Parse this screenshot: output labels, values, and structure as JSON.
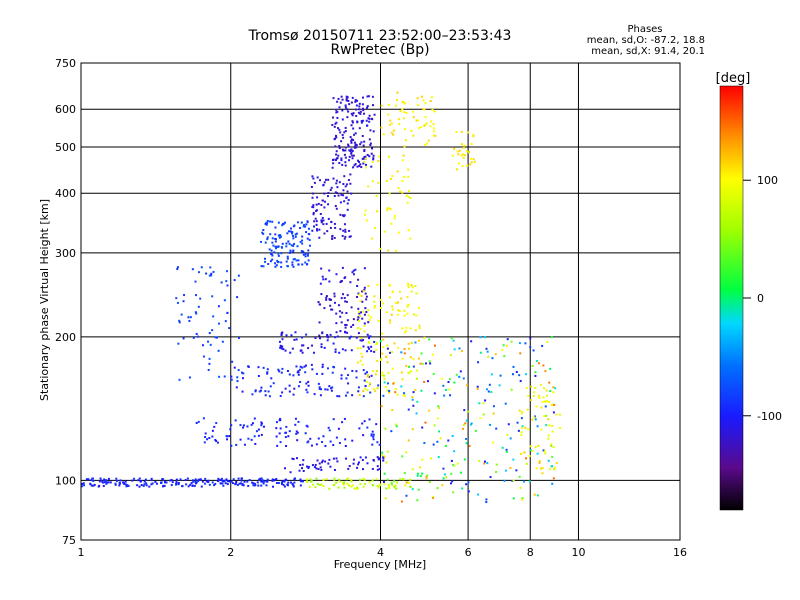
{
  "chart_data": {
    "type": "scatter",
    "title": "Tromsø 20150711 23:52:00–23:53:43",
    "subtitle": "RwPretec (Bp)",
    "xlabel": "Frequency [MHz]",
    "ylabel": "Stationary phase Virtual Height [km]",
    "x_scale": "log",
    "y_scale": "log",
    "xlim": [
      1,
      16
    ],
    "ylim": [
      75,
      750
    ],
    "x_ticks": [
      1,
      2,
      4,
      6,
      8,
      10,
      16
    ],
    "y_ticks": [
      75,
      100,
      200,
      300,
      400,
      500,
      600,
      750
    ],
    "grid": true,
    "stats": {
      "heading": "Phases",
      "line1": "mean, sd,O: -87.2, 18.8",
      "line2": "mean, sd,X:  91.4, 20.1"
    },
    "colorbar": {
      "label": "[deg]",
      "range": [
        -180,
        180
      ],
      "ticks": [
        -100,
        0,
        100
      ]
    },
    "clusters": [
      {
        "name": "baseline",
        "x": [
          1.0,
          2.8
        ],
        "h": [
          97,
          101
        ],
        "phase": -95,
        "spread": 10,
        "n": 220
      },
      {
        "name": "baseline-high",
        "x": [
          2.8,
          4.6
        ],
        "h": [
          96,
          101
        ],
        "phase": 70,
        "spread": 25,
        "n": 80
      },
      {
        "name": "blob-300",
        "x": [
          2.3,
          2.9
        ],
        "h": [
          280,
          350
        ],
        "phase": -80,
        "spread": 8,
        "n": 140
      },
      {
        "name": "diag-2-a",
        "x": [
          1.55,
          2.1
        ],
        "h": [
          160,
          280
        ],
        "phase": -80,
        "spread": 10,
        "n": 70
      },
      {
        "name": "arc-150",
        "x": [
          2.0,
          4.0
        ],
        "h": [
          150,
          175
        ],
        "phase": -95,
        "spread": 12,
        "n": 110
      },
      {
        "name": "arc-120",
        "x": [
          1.7,
          4.0
        ],
        "h": [
          118,
          135
        ],
        "phase": -95,
        "spread": 12,
        "n": 110
      },
      {
        "name": "arc-105",
        "x": [
          2.5,
          4.1
        ],
        "h": [
          104,
          112
        ],
        "phase": -110,
        "spread": 10,
        "n": 60
      },
      {
        "name": "arc-200",
        "x": [
          2.5,
          3.9
        ],
        "h": [
          185,
          205
        ],
        "phase": -105,
        "spread": 10,
        "n": 70
      },
      {
        "name": "column-f2",
        "x": [
          3.2,
          3.9
        ],
        "h": [
          450,
          640
        ],
        "phase": -115,
        "spread": 10,
        "n": 180
      },
      {
        "name": "column-mid",
        "x": [
          2.9,
          3.5
        ],
        "h": [
          320,
          440
        ],
        "phase": -115,
        "spread": 10,
        "n": 110
      },
      {
        "name": "column-low",
        "x": [
          3.0,
          3.8
        ],
        "h": [
          200,
          280
        ],
        "phase": -115,
        "spread": 10,
        "n": 90
      },
      {
        "name": "x-mode-top",
        "x": [
          4.0,
          5.2
        ],
        "h": [
          500,
          650
        ],
        "phase": 105,
        "spread": 15,
        "n": 60
      },
      {
        "name": "x-mode-mid",
        "x": [
          3.7,
          4.6
        ],
        "h": [
          300,
          480
        ],
        "phase": 100,
        "spread": 15,
        "n": 50
      },
      {
        "name": "x-mode-low",
        "x": [
          3.6,
          4.8
        ],
        "h": [
          150,
          260
        ],
        "phase": 100,
        "spread": 18,
        "n": 140
      },
      {
        "name": "x-mode-480",
        "x": [
          5.5,
          6.2
        ],
        "h": [
          440,
          540
        ],
        "phase": 105,
        "spread": 10,
        "n": 30
      },
      {
        "name": "scatter-mixed",
        "x": [
          4.0,
          9.0
        ],
        "h": [
          90,
          200
        ],
        "phase": 20,
        "spread": 130,
        "n": 280
      },
      {
        "name": "x-mode-right",
        "x": [
          7.6,
          9.2
        ],
        "h": [
          105,
          160
        ],
        "phase": 100,
        "spread": 15,
        "n": 60
      }
    ]
  },
  "labels": {
    "x_ticks": [
      "1",
      "2",
      "4",
      "6",
      "8",
      "10",
      "16"
    ],
    "y_ticks": [
      "75",
      "100",
      "200",
      "300",
      "400",
      "500",
      "600",
      "750"
    ],
    "cb_ticks": [
      "-100",
      "0",
      "100"
    ]
  }
}
